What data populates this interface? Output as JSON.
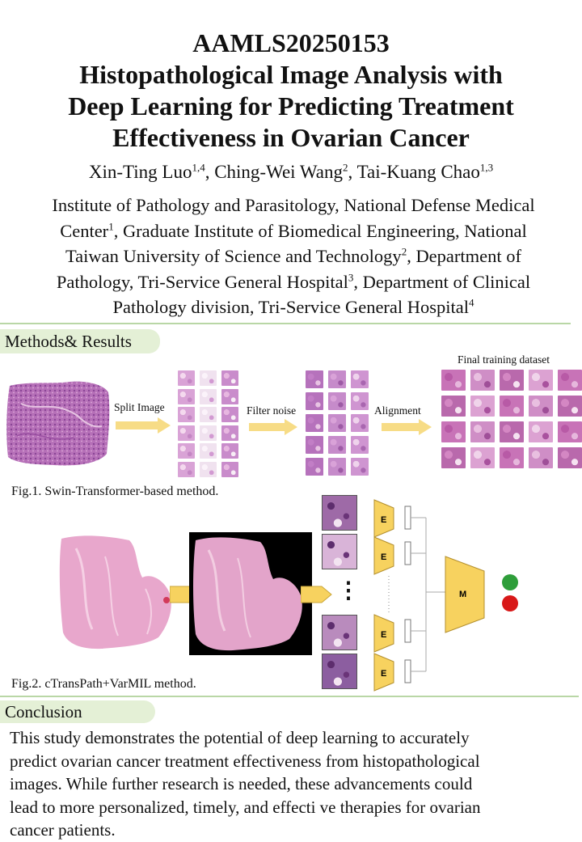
{
  "header": {
    "code": "AAMLS20250153",
    "title_lines": [
      "Histopathological Image Analysis with",
      "Deep Learning for Predicting Treatment",
      "Effectiveness in Ovarian Cancer"
    ]
  },
  "authors": [
    {
      "name": "Xin-Ting Luo",
      "sup": "1,4",
      "sep": ", "
    },
    {
      "name": "Ching-Wei Wang",
      "sup": "2",
      "sep": ", "
    },
    {
      "name": "Tai-Kuang Chao",
      "sup": "1,3",
      "sep": ""
    }
  ],
  "affiliations": {
    "line1": "Institute of Pathology and Parasitology, National Defense Medical",
    "line2_a": "Center",
    "line2_sup": "1",
    "line2_b": ", Graduate Institute of Biomedical Engineering, National",
    "line3_a": "Taiwan University of Science and Technology",
    "line3_sup": "2",
    "line3_b": ", Department of",
    "line4_a": "Pathology, Tri-Service General Hospital",
    "line4_sup": "3",
    "line4_b": ", Department of Clinical",
    "line5_a": "Pathology division, Tri-Service General Hospital",
    "line5_sup": "4"
  },
  "methods": {
    "heading": "Methods& Results",
    "fig1": {
      "step1": "Split Image",
      "step2": "Filter noise",
      "step3": "Alignment",
      "dataset_label": "Final training dataset",
      "caption": "Fig.1. Swin-Transformer-based method."
    },
    "fig2": {
      "encoder_label": "E",
      "model_label": "M",
      "ellipsis": "⋮",
      "caption": "Fig.2. cTransPath+VarMIL method.",
      "colors": {
        "positive": "#2e9e3a",
        "negative": "#d81818",
        "block": "#f7d25f"
      }
    }
  },
  "conclusion": {
    "heading": "Conclusion",
    "lines": [
      "This study demonstrates the potential of deep learning to accurately",
      "predict ovarian cancer treatment effectiveness from histopathological",
      "images. While further research is needed, these advancements could",
      "lead to more personalized, timely, and effecti ve therapies for ovarian",
      "cancer patients."
    ]
  }
}
